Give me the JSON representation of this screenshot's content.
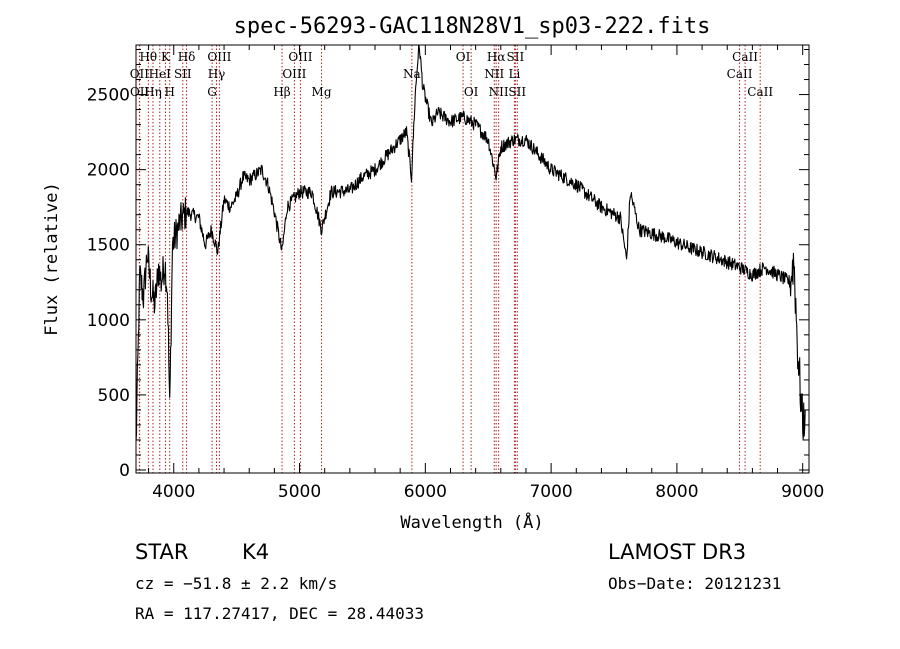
{
  "chart_data": {
    "type": "line",
    "title": "spec-56293-GAC118N28V1_sp03-222.fits",
    "xlabel": "Wavelength (Å)",
    "ylabel": "Flux (relative)",
    "xlim": [
      3700,
      9050
    ],
    "ylim": [
      -20,
      2830
    ],
    "xticks": [
      4000,
      5000,
      6000,
      7000,
      8000,
      9000
    ],
    "yticks": [
      0,
      500,
      1000,
      1500,
      2000,
      2500
    ],
    "line_color": "#000000",
    "marker_color": "#b22222",
    "spectrum_anchors": [
      [
        3700,
        150
      ],
      [
        3730,
        1300
      ],
      [
        3760,
        1150
      ],
      [
        3790,
        1450
      ],
      [
        3820,
        1200
      ],
      [
        3850,
        1100
      ],
      [
        3880,
        1350
      ],
      [
        3900,
        1250
      ],
      [
        3930,
        1380
      ],
      [
        3950,
        1200
      ],
      [
        3968,
        400
      ],
      [
        3990,
        1500
      ],
      [
        4050,
        1650
      ],
      [
        4100,
        1720
      ],
      [
        4200,
        1680
      ],
      [
        4250,
        1500
      ],
      [
        4300,
        1600
      ],
      [
        4350,
        1450
      ],
      [
        4400,
        1800
      ],
      [
        4450,
        1750
      ],
      [
        4500,
        1820
      ],
      [
        4550,
        1950
      ],
      [
        4600,
        1930
      ],
      [
        4700,
        2000
      ],
      [
        4750,
        1900
      ],
      [
        4800,
        1720
      ],
      [
        4861,
        1450
      ],
      [
        4900,
        1750
      ],
      [
        5000,
        1850
      ],
      [
        5100,
        1850
      ],
      [
        5175,
        1600
      ],
      [
        5250,
        1850
      ],
      [
        5400,
        1860
      ],
      [
        5500,
        1950
      ],
      [
        5600,
        2000
      ],
      [
        5700,
        2100
      ],
      [
        5800,
        2200
      ],
      [
        5850,
        2250
      ],
      [
        5890,
        1950
      ],
      [
        5920,
        2500
      ],
      [
        5950,
        2850
      ],
      [
        5980,
        2550
      ],
      [
        6050,
        2300
      ],
      [
        6100,
        2380
      ],
      [
        6200,
        2320
      ],
      [
        6300,
        2350
      ],
      [
        6400,
        2300
      ],
      [
        6500,
        2200
      ],
      [
        6563,
        1950
      ],
      [
        6600,
        2150
      ],
      [
        6700,
        2200
      ],
      [
        6800,
        2200
      ],
      [
        6850,
        2150
      ],
      [
        7000,
        2000
      ],
      [
        7200,
        1900
      ],
      [
        7400,
        1750
      ],
      [
        7550,
        1680
      ],
      [
        7600,
        1400
      ],
      [
        7630,
        1850
      ],
      [
        7700,
        1600
      ],
      [
        7900,
        1550
      ],
      [
        8100,
        1480
      ],
      [
        8300,
        1420
      ],
      [
        8500,
        1350
      ],
      [
        8600,
        1300
      ],
      [
        8700,
        1350
      ],
      [
        8800,
        1300
      ],
      [
        8900,
        1250
      ],
      [
        8930,
        1400
      ],
      [
        8960,
        800
      ],
      [
        9000,
        300
      ],
      [
        9020,
        400
      ]
    ],
    "spectral_lines": [
      {
        "name": "Hθ",
        "wavelength": 3798,
        "row": 0
      },
      {
        "name": "OII",
        "wavelength": 3727,
        "row": 1
      },
      {
        "name": "OII",
        "wavelength": 3729,
        "row": 2
      },
      {
        "name": "Hη",
        "wavelength": 3835,
        "row": 2
      },
      {
        "name": "HeI",
        "wavelength": 3889,
        "row": 1
      },
      {
        "name": "K",
        "wavelength": 3934,
        "row": 0
      },
      {
        "name": "H",
        "wavelength": 3968,
        "row": 2
      },
      {
        "name": "Hδ",
        "wavelength": 4102,
        "row": 0
      },
      {
        "name": "SII",
        "wavelength": 4072,
        "row": 1
      },
      {
        "name": "OIII",
        "wavelength": 4363,
        "row": 0
      },
      {
        "name": "Hγ",
        "wavelength": 4340,
        "row": 1
      },
      {
        "name": "G",
        "wavelength": 4305,
        "row": 2
      },
      {
        "name": "Hβ",
        "wavelength": 4861,
        "row": 2
      },
      {
        "name": "OIII",
        "wavelength": 5007,
        "row": 0
      },
      {
        "name": "OIII",
        "wavelength": 4959,
        "row": 1
      },
      {
        "name": "Mg",
        "wavelength": 5175,
        "row": 2
      },
      {
        "name": "Na",
        "wavelength": 5893,
        "row": 1
      },
      {
        "name": "OI",
        "wavelength": 6300,
        "row": 0
      },
      {
        "name": "OI",
        "wavelength": 6364,
        "row": 2
      },
      {
        "name": "Hα",
        "wavelength": 6563,
        "row": 0
      },
      {
        "name": "NII",
        "wavelength": 6548,
        "row": 1
      },
      {
        "name": "NII",
        "wavelength": 6583,
        "row": 2
      },
      {
        "name": "SII",
        "wavelength": 6716,
        "row": 0
      },
      {
        "name": "Li",
        "wavelength": 6708,
        "row": 1
      },
      {
        "name": "SII",
        "wavelength": 6731,
        "row": 2
      },
      {
        "name": "CaII",
        "wavelength": 8542,
        "row": 0
      },
      {
        "name": "CaII",
        "wavelength": 8498,
        "row": 1
      },
      {
        "name": "CaII",
        "wavelength": 8662,
        "row": 2
      }
    ]
  },
  "info": {
    "class": "STAR",
    "subclass": "K4",
    "survey": "LAMOST DR3",
    "cz": "cz = −51.8 ± 2.2 km/s",
    "obs_date": "Obs−Date: 20121231",
    "radec": "RA = 117.27417, DEC =  28.44033"
  }
}
